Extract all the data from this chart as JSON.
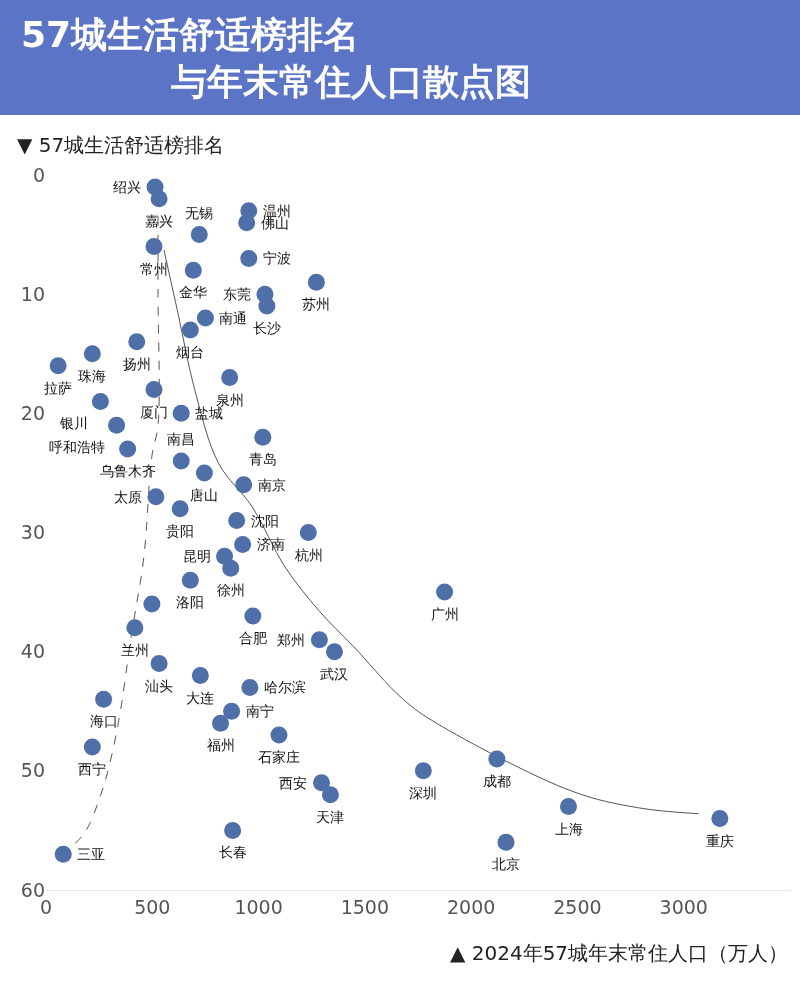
{
  "chart_data": {
    "type": "scatter",
    "title": "57城生活舒适榜排名与年末常住人口散点图",
    "xlabel": "▲ 2024年57城年末常住人口（万人）",
    "ylabel": "▼ 57城生活舒适榜排名",
    "xlim": [
      0,
      3500
    ],
    "xticks": [
      0,
      500,
      1000,
      1500,
      2000,
      2500,
      3000
    ],
    "ylim": [
      60,
      0
    ],
    "yticks": [
      0,
      10,
      20,
      30,
      40,
      50,
      60
    ],
    "marker": "circle",
    "series": [
      {
        "color": "#4f6fa8",
        "x": [
          513,
          532,
          954,
          944,
          721,
          508,
          954,
          693,
          1272,
          1030,
          1039,
          750,
          679,
          427,
          218,
          57,
          864,
          508,
          256,
          636,
          332,
          1020,
          384,
          636,
          745,
          930,
          517,
          631,
          897,
          1234,
          925,
          840,
          869,
          679,
          1875,
          498,
          973,
          418,
          1286,
          1357,
          532,
          726,
          959,
          271,
          873,
          821,
          1096,
          218,
          2121,
          1775,
          1296,
          1338,
          2458,
          3170,
          878,
          2164,
          81
        ],
        "values": [
          1,
          2,
          3,
          4,
          5,
          6,
          7,
          8,
          9,
          10,
          11,
          12,
          13,
          14,
          15,
          16,
          17,
          18,
          19,
          20,
          21,
          22,
          23,
          24,
          25,
          26,
          27,
          28,
          29,
          30,
          31,
          32,
          33,
          34,
          35,
          36,
          37,
          38,
          39,
          40,
          41,
          42,
          43,
          44,
          45,
          46,
          47,
          48,
          49,
          50,
          51,
          52,
          53,
          54,
          55,
          56,
          57
        ]
      },
      {
        "type": "line",
        "marker": "none",
        "color": "#555555",
        "line_style": "dashed",
        "x": [
          527,
          527,
          527,
          498,
          460,
          399,
          351,
          304,
          256,
          185,
          95
        ],
        "values": [
          3.5,
          10,
          21,
          23.6,
          32.1,
          38.9,
          44.9,
          49.1,
          52.1,
          55.1,
          56.8
        ]
      },
      {
        "type": "line",
        "marker": "none",
        "color": "#555555",
        "line_style": "solid",
        "x": [
          555,
          622,
          698,
          812,
          968,
          1125,
          1286,
          1443,
          1680,
          1837,
          2473,
          2786,
          3070
        ],
        "values": [
          6.3,
          11.7,
          17.9,
          24.2,
          27.8,
          32.9,
          36.6,
          39.5,
          44,
          46,
          51.7,
          53.1,
          53.6
        ]
      }
    ],
    "annotations": [
      {
        "text": "绍兴",
        "x": 513,
        "y": 1
      },
      {
        "text": "嘉兴",
        "x": 532,
        "y": 2
      },
      {
        "text": "温州",
        "x": 954,
        "y": 3
      },
      {
        "text": "佛山",
        "x": 944,
        "y": 4
      },
      {
        "text": "无锡",
        "x": 721,
        "y": 5
      },
      {
        "text": "常州",
        "x": 508,
        "y": 6
      },
      {
        "text": "宁波",
        "x": 954,
        "y": 7
      },
      {
        "text": "金华",
        "x": 693,
        "y": 8
      },
      {
        "text": "苏州",
        "x": 1272,
        "y": 9
      },
      {
        "text": "东莞",
        "x": 1030,
        "y": 10
      },
      {
        "text": "长沙",
        "x": 1039,
        "y": 11
      },
      {
        "text": "南通",
        "x": 750,
        "y": 12
      },
      {
        "text": "烟台",
        "x": 679,
        "y": 13
      },
      {
        "text": "扬州",
        "x": 427,
        "y": 14
      },
      {
        "text": "珠海",
        "x": 218,
        "y": 15
      },
      {
        "text": "拉萨",
        "x": 57,
        "y": 16
      },
      {
        "text": "泉州",
        "x": 864,
        "y": 17
      },
      {
        "text": "厦门",
        "x": 508,
        "y": 18
      },
      {
        "text": "银川",
        "x": 256,
        "y": 19
      },
      {
        "text": "盐城",
        "x": 636,
        "y": 20
      },
      {
        "text": "呼和浩特",
        "x": 332,
        "y": 21
      },
      {
        "text": "青岛",
        "x": 1020,
        "y": 22
      },
      {
        "text": "乌鲁木齐",
        "x": 384,
        "y": 23
      },
      {
        "text": "南昌",
        "x": 636,
        "y": 24
      },
      {
        "text": "唐山",
        "x": 745,
        "y": 25
      },
      {
        "text": "南京",
        "x": 930,
        "y": 26
      },
      {
        "text": "太原",
        "x": 517,
        "y": 27
      },
      {
        "text": "贵阳",
        "x": 631,
        "y": 28
      },
      {
        "text": "沈阳",
        "x": 897,
        "y": 29
      },
      {
        "text": "杭州",
        "x": 1234,
        "y": 30
      },
      {
        "text": "济南",
        "x": 925,
        "y": 31
      },
      {
        "text": "昆明",
        "x": 840,
        "y": 32
      },
      {
        "text": "徐州",
        "x": 869,
        "y": 33
      },
      {
        "text": "洛阳",
        "x": 679,
        "y": 34
      },
      {
        "text": "广州",
        "x": 1875,
        "y": 35
      },
      {
        "text": "合肥",
        "x": 973,
        "y": 37
      },
      {
        "text": "兰州",
        "x": 418,
        "y": 38
      },
      {
        "text": "郑州",
        "x": 1286,
        "y": 39
      },
      {
        "text": "武汉",
        "x": 1357,
        "y": 40
      },
      {
        "text": "汕头",
        "x": 532,
        "y": 41
      },
      {
        "text": "大连",
        "x": 726,
        "y": 42
      },
      {
        "text": "哈尔滨",
        "x": 959,
        "y": 43
      },
      {
        "text": "海口",
        "x": 271,
        "y": 44
      },
      {
        "text": "南宁",
        "x": 873,
        "y": 45
      },
      {
        "text": "福州",
        "x": 821,
        "y": 46
      },
      {
        "text": "石家庄",
        "x": 1096,
        "y": 47
      },
      {
        "text": "西宁",
        "x": 218,
        "y": 48
      },
      {
        "text": "成都",
        "x": 2121,
        "y": 49
      },
      {
        "text": "深圳",
        "x": 1775,
        "y": 50
      },
      {
        "text": "西安",
        "x": 1296,
        "y": 51
      },
      {
        "text": "天津",
        "x": 1338,
        "y": 52
      },
      {
        "text": "上海",
        "x": 2458,
        "y": 53
      },
      {
        "text": "重庆",
        "x": 3170,
        "y": 54
      },
      {
        "text": "长春",
        "x": 878,
        "y": 55
      },
      {
        "text": "北京",
        "x": 2164,
        "y": 56
      },
      {
        "text": "三亚",
        "x": 81,
        "y": 57
      }
    ]
  }
}
